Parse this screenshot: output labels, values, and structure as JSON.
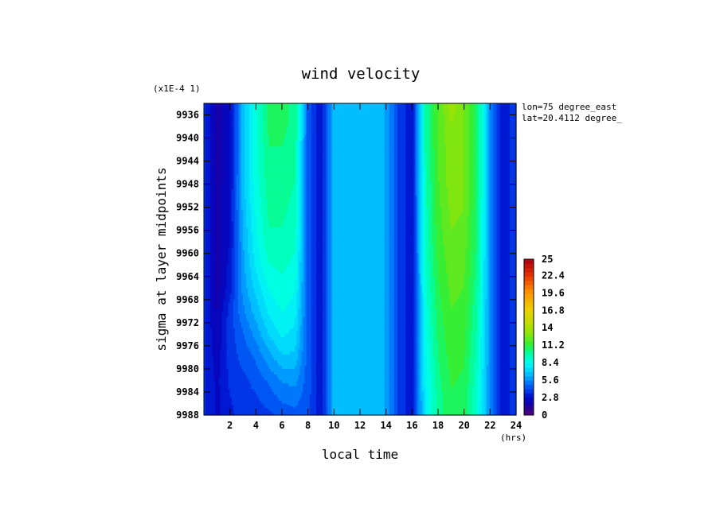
{
  "chart_data": {
    "type": "heatmap",
    "title": "wind velocity",
    "xlabel": "local time",
    "x_unit": "(hrs)",
    "ylabel": "sigma at layer midpoints",
    "y_scale_note": "(x1E-4 1)",
    "annotations": [
      "lon=75 degree_east",
      "lat=20.4112 degree_"
    ],
    "xlim": [
      0,
      24
    ],
    "ylim": [
      9988,
      9934
    ],
    "x_ticks": [
      "2",
      "4",
      "6",
      "8",
      "10",
      "12",
      "14",
      "16",
      "18",
      "20",
      "22",
      "24"
    ],
    "y_ticks": [
      "9936",
      "9940",
      "9944",
      "9948",
      "9952",
      "9956",
      "9960",
      "9964",
      "9968",
      "9972",
      "9976",
      "9980",
      "9984",
      "9988"
    ],
    "colorbar": {
      "min": 0,
      "max": 25,
      "labels": [
        "25",
        "22.4",
        "19.6",
        "16.8",
        "14",
        "11.2",
        "8.4",
        "5.6",
        "2.8",
        "0"
      ]
    },
    "x": [
      0,
      1,
      2,
      3,
      4,
      5,
      6,
      7,
      8,
      9,
      10,
      11,
      12,
      13,
      14,
      15,
      16,
      17,
      18,
      19,
      20,
      21,
      22,
      23,
      24
    ],
    "y": [
      9934,
      9938,
      9942,
      9946,
      9950,
      9954,
      9958,
      9962,
      9966,
      9970,
      9974,
      9978,
      9982,
      9986,
      9988
    ],
    "z": [
      [
        3.6,
        1.8,
        2.6,
        6.6,
        8.8,
        10.6,
        10.6,
        10.2,
        4.5,
        3.0,
        6.6,
        6.8,
        6.6,
        6.6,
        6.2,
        4.0,
        2.8,
        9.6,
        11.8,
        13.6,
        12.6,
        10.6,
        5.6,
        2.8,
        4.0
      ],
      [
        3.6,
        1.8,
        2.6,
        6.6,
        8.8,
        10.6,
        10.6,
        10.2,
        4.5,
        3.0,
        6.6,
        6.8,
        6.6,
        6.6,
        6.2,
        4.0,
        2.8,
        9.6,
        11.8,
        13.2,
        12.6,
        10.6,
        5.6,
        2.8,
        4.0
      ],
      [
        3.6,
        1.8,
        2.6,
        6.6,
        8.8,
        10.4,
        10.4,
        10.0,
        4.5,
        3.0,
        6.6,
        6.8,
        6.6,
        6.6,
        6.2,
        4.0,
        2.8,
        9.6,
        11.8,
        13.0,
        12.6,
        10.6,
        5.6,
        2.8,
        4.0
      ],
      [
        3.6,
        1.8,
        2.6,
        6.6,
        8.8,
        10.2,
        10.2,
        9.8,
        4.5,
        3.0,
        6.6,
        6.8,
        6.6,
        6.6,
        6.2,
        4.0,
        2.8,
        9.4,
        11.8,
        13.0,
        12.6,
        10.6,
        5.6,
        2.8,
        4.0
      ],
      [
        3.6,
        1.8,
        2.8,
        6.6,
        8.6,
        10.0,
        10.0,
        9.6,
        4.5,
        3.0,
        6.6,
        6.8,
        6.6,
        6.6,
        6.2,
        4.0,
        2.8,
        9.4,
        11.6,
        12.8,
        12.6,
        10.6,
        5.6,
        2.8,
        4.0
      ],
      [
        3.6,
        1.8,
        2.8,
        6.4,
        8.4,
        9.8,
        9.8,
        9.4,
        4.5,
        3.0,
        6.6,
        6.8,
        6.6,
        6.6,
        6.2,
        4.0,
        2.8,
        9.2,
        11.6,
        12.6,
        12.4,
        10.4,
        5.6,
        2.8,
        4.0
      ],
      [
        3.6,
        1.8,
        2.8,
        6.2,
        8.2,
        9.6,
        9.6,
        9.2,
        4.5,
        3.0,
        6.6,
        6.8,
        6.6,
        6.6,
        6.2,
        4.0,
        2.8,
        9.2,
        11.4,
        12.4,
        12.2,
        10.4,
        5.6,
        2.8,
        4.0
      ],
      [
        3.6,
        1.8,
        3.0,
        6.0,
        7.8,
        9.0,
        9.2,
        8.8,
        4.5,
        3.0,
        6.6,
        6.8,
        6.6,
        6.6,
        6.2,
        4.0,
        2.8,
        9.0,
        11.2,
        12.2,
        12.0,
        10.2,
        5.6,
        2.8,
        4.0
      ],
      [
        3.6,
        1.8,
        3.2,
        5.8,
        7.2,
        8.4,
        8.8,
        8.4,
        4.5,
        3.0,
        6.6,
        6.8,
        6.6,
        6.6,
        6.2,
        4.0,
        2.8,
        8.8,
        11.0,
        12.0,
        11.8,
        10.0,
        5.6,
        2.8,
        4.0
      ],
      [
        3.6,
        2.0,
        3.8,
        5.4,
        6.6,
        7.8,
        8.4,
        8.0,
        4.5,
        3.0,
        6.6,
        6.8,
        6.6,
        6.6,
        6.2,
        4.0,
        2.8,
        8.6,
        10.8,
        11.8,
        11.6,
        9.8,
        5.6,
        2.8,
        4.0
      ],
      [
        3.6,
        2.2,
        3.8,
        4.8,
        5.8,
        7.0,
        7.8,
        7.4,
        4.5,
        3.0,
        6.6,
        6.8,
        6.6,
        6.6,
        6.2,
        4.0,
        2.8,
        8.4,
        10.6,
        11.6,
        11.4,
        9.6,
        5.6,
        2.8,
        4.0
      ],
      [
        3.6,
        2.4,
        3.8,
        4.4,
        5.0,
        6.0,
        6.8,
        6.8,
        4.5,
        3.0,
        6.6,
        6.8,
        6.6,
        6.6,
        6.2,
        4.0,
        2.8,
        8.2,
        10.4,
        11.4,
        11.2,
        9.4,
        5.6,
        2.8,
        4.0
      ],
      [
        3.6,
        2.6,
        3.6,
        4.0,
        4.4,
        5.0,
        5.6,
        5.8,
        4.5,
        3.0,
        6.6,
        6.8,
        6.6,
        6.6,
        6.2,
        4.0,
        2.8,
        8.0,
        10.2,
        11.2,
        11.0,
        9.2,
        5.4,
        2.8,
        4.0
      ],
      [
        3.6,
        2.6,
        3.4,
        3.8,
        4.0,
        4.4,
        4.8,
        5.0,
        4.4,
        3.0,
        6.6,
        6.8,
        6.6,
        6.6,
        6.2,
        4.0,
        2.8,
        7.8,
        10.0,
        11.0,
        10.8,
        9.0,
        5.4,
        2.8,
        4.0
      ],
      [
        3.6,
        2.6,
        3.4,
        3.6,
        3.8,
        4.0,
        4.4,
        4.6,
        4.4,
        3.0,
        6.6,
        6.8,
        6.6,
        6.6,
        6.2,
        4.0,
        2.8,
        7.8,
        10.0,
        11.0,
        10.8,
        9.0,
        5.4,
        2.8,
        4.0
      ]
    ]
  }
}
